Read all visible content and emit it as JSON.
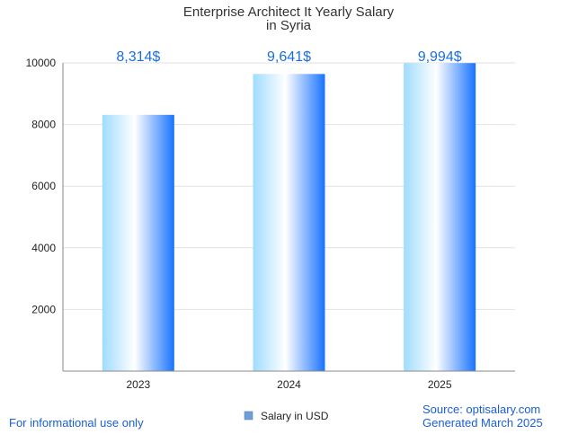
{
  "chart_data": {
    "type": "bar",
    "title_line1": "Enterprise Architect It Yearly Salary",
    "title_line2": "in Syria",
    "categories": [
      "2023",
      "2024",
      "2025"
    ],
    "series": [
      {
        "name": "Salary in USD",
        "values": [
          8314,
          9641,
          9994
        ]
      }
    ],
    "data_labels": [
      "8,314$",
      "9,641$",
      "9,994$"
    ],
    "y_ticks": [
      2000,
      4000,
      6000,
      8000,
      10000
    ],
    "ylim": [
      0,
      10000
    ],
    "grid": true,
    "legend_position": "bottom-center",
    "colors": {
      "bar_light": "#9fdcff",
      "bar_white": "#ffffff",
      "bar_dark": "#1a73ff",
      "label": "#1a6fe0",
      "grid": "#e2e2e2",
      "axis": "#888888",
      "legend_swatch": "#6f9fd8"
    }
  },
  "footer": {
    "left_note": "For informational use only",
    "source": "Source: optisalary.com",
    "generated": "Generated March 2025"
  }
}
